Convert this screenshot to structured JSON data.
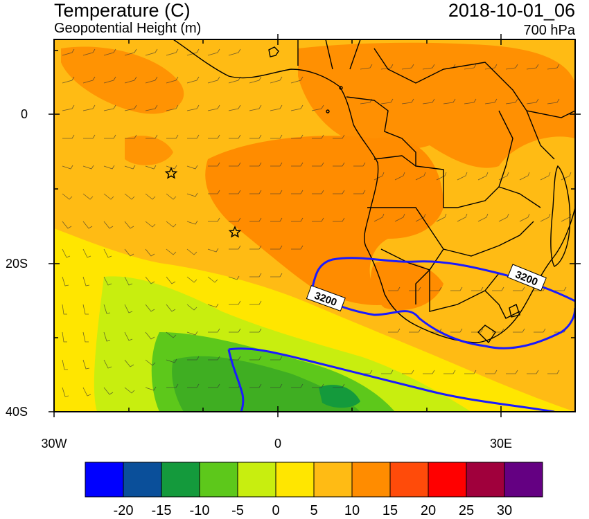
{
  "header": {
    "title_left": "Temperature (C)",
    "subtitle_left": "Geopotential Height (m)",
    "title_right": "2018-10-01_06",
    "subtitle_right": "700 hPa"
  },
  "map": {
    "lat_labels": [
      "0",
      "20S",
      "40S"
    ],
    "lon_labels": [
      "30W",
      "0",
      "30E"
    ],
    "contour_labels": [
      "3200",
      "3200"
    ],
    "markers": [
      "star",
      "star"
    ]
  },
  "colorbar": {
    "colors": [
      "#0000ff",
      "#0a4f9a",
      "#149a3c",
      "#5dc81b",
      "#c8ee0f",
      "#ffe600",
      "#ffbb14",
      "#ff8c00",
      "#ff4b0a",
      "#ff0000",
      "#a0003c",
      "#640082"
    ],
    "labels": [
      "-20",
      "-15",
      "-10",
      "-5",
      "0",
      "5",
      "10",
      "15",
      "20",
      "25",
      "30"
    ]
  },
  "style": {
    "contour_color": "#1a1aff",
    "border_color": "#000000"
  }
}
